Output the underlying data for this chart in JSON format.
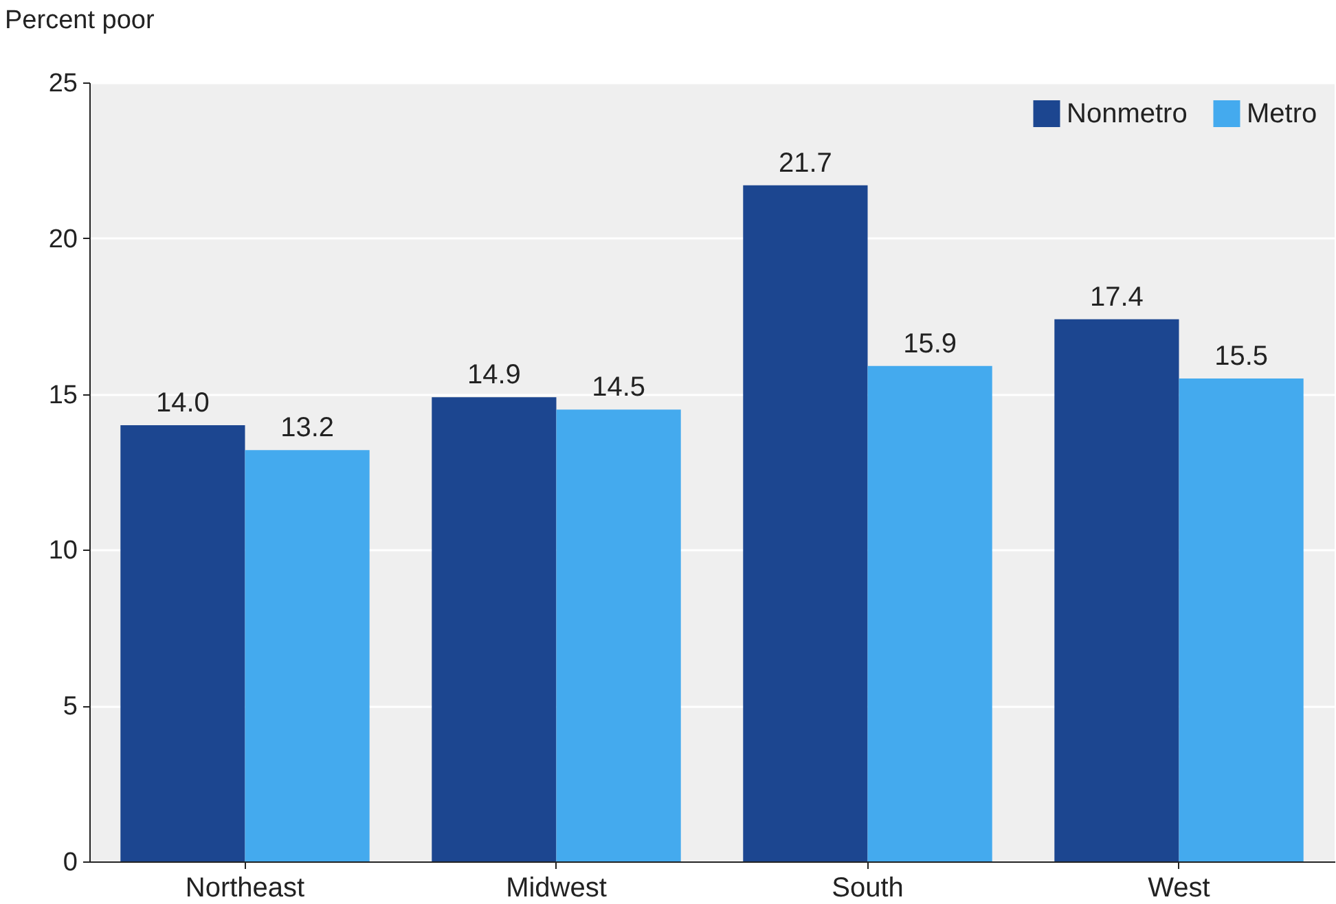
{
  "chart_data": {
    "type": "bar",
    "ylabel": "Percent poor",
    "categories": [
      "Northeast",
      "Midwest",
      "South",
      "West"
    ],
    "series": [
      {
        "name": "Nonmetro",
        "color": "#1c4690",
        "values": [
          14.0,
          14.9,
          21.7,
          17.4
        ],
        "value_labels": [
          "14.0",
          "14.9",
          "21.7",
          "17.4"
        ]
      },
      {
        "name": "Metro",
        "color": "#44aaee",
        "values": [
          13.2,
          14.5,
          15.9,
          15.5
        ],
        "value_labels": [
          "13.2",
          "14.5",
          "15.9",
          "15.5"
        ]
      }
    ],
    "ylim": [
      0,
      25
    ],
    "yticks": [
      0,
      5,
      10,
      15,
      20,
      25
    ],
    "grid": "y",
    "legend": "top right"
  }
}
